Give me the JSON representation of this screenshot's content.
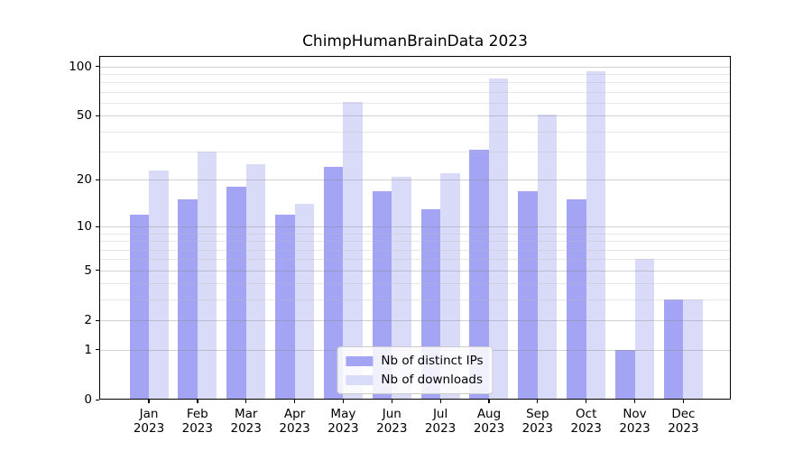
{
  "chart_data": {
    "type": "bar",
    "title": "ChimpHumanBrainData 2023",
    "months": [
      "Jan",
      "Feb",
      "Mar",
      "Apr",
      "May",
      "Jun",
      "Jul",
      "Aug",
      "Sep",
      "Oct",
      "Nov",
      "Dec"
    ],
    "year_label": "2023",
    "series": [
      {
        "name": "Nb of distinct IPs",
        "color": "#a4a4f4",
        "values": [
          12,
          15,
          18,
          12,
          24,
          17,
          13,
          31,
          17,
          15,
          1,
          3
        ]
      },
      {
        "name": "Nb of downloads",
        "color": "#dadaf9",
        "values": [
          23,
          30,
          25,
          14,
          61,
          21,
          22,
          84,
          51,
          94,
          6,
          3
        ]
      }
    ],
    "yscale": "log1p",
    "ylim": [
      0,
      115.7
    ],
    "yticks": [
      100,
      50,
      20,
      10,
      5,
      2,
      1,
      0
    ],
    "minor_yticks": [
      3,
      4,
      6,
      7,
      8,
      9,
      30,
      40,
      60,
      70,
      80,
      90
    ],
    "xlabel": "",
    "ylabel": "",
    "grid": "major+minor, drawn above bars",
    "legend_position": "lower center"
  }
}
